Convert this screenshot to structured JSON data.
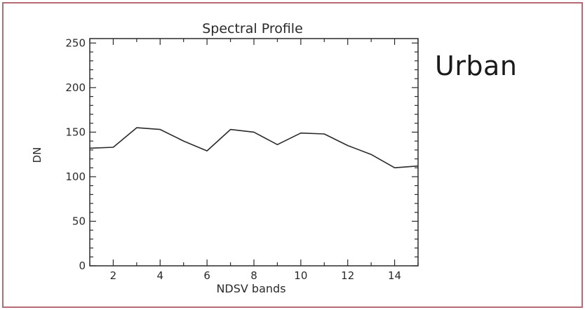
{
  "side_label": "Urban",
  "colors": {
    "frame_border": "#b56b75",
    "axis": "#2a2a2a",
    "line": "#2a2a2a"
  },
  "chart_data": {
    "type": "line",
    "title": "Spectral Profile",
    "xlabel": "NDSV bands",
    "ylabel": "DN",
    "xlim": [
      1,
      15
    ],
    "ylim": [
      0,
      255
    ],
    "xticks": [
      2,
      4,
      6,
      8,
      10,
      12,
      14
    ],
    "yticks": [
      0,
      50,
      100,
      150,
      200,
      250
    ],
    "grid": false,
    "series": [
      {
        "x": [
          1,
          2,
          3,
          4,
          5,
          6,
          7,
          8,
          9,
          10,
          11,
          12,
          13,
          14,
          15
        ],
        "values": [
          132,
          133,
          155,
          153,
          140,
          129,
          153,
          150,
          136,
          149,
          148,
          135,
          125,
          110,
          112
        ]
      }
    ]
  }
}
